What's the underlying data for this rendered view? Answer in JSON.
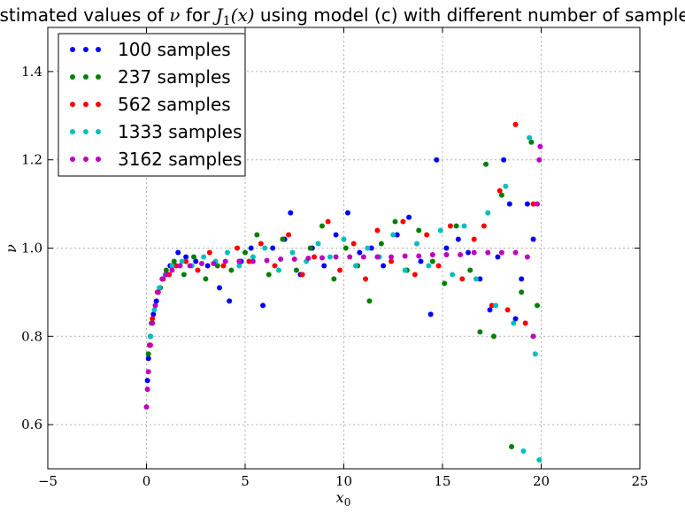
{
  "chart_data": {
    "type": "scatter",
    "title_parts": [
      {
        "text": "Estimated values of ",
        "math": false
      },
      {
        "text": "ν",
        "math": true
      },
      {
        "text": " for ",
        "math": false
      },
      {
        "text": "J",
        "math": true,
        "sub": "1",
        "after": "(x)"
      },
      {
        "text": " using model (c) with different number of samples",
        "math": false
      }
    ],
    "xlabel": "x",
    "xlabel_sub": "0",
    "ylabel": "ν",
    "xlim": [
      -5,
      25
    ],
    "ylim": [
      0.5,
      1.5
    ],
    "xticks": [
      -5,
      0,
      5,
      10,
      15,
      20,
      25
    ],
    "yticks": [
      0.6,
      0.8,
      1.0,
      1.2,
      1.4
    ],
    "ytick_labels": [
      "0.6",
      "0.8",
      "1.0",
      "1.2",
      "1.4"
    ],
    "xtick_labels": [
      "−5",
      "0",
      "5",
      "10",
      "15",
      "20",
      "25"
    ],
    "grid": true,
    "legend_position": "upper-left",
    "series": [
      {
        "name": "100 samples",
        "color": "#0000ff",
        "x": [
          0.05,
          0.1,
          0.2,
          0.35,
          0.5,
          0.8,
          1.2,
          1.6,
          2.0,
          2.5,
          3.1,
          3.7,
          4.2,
          4.8,
          5.3,
          5.9,
          6.4,
          7.0,
          7.3,
          7.8,
          8.4,
          9.0,
          9.6,
          10.2,
          10.8,
          11.4,
          12.0,
          12.7,
          13.3,
          13.9,
          14.4,
          14.7,
          15.2,
          15.8,
          16.3,
          16.9,
          17.4,
          17.8,
          18.1,
          18.4,
          18.7,
          19.0,
          19.3,
          19.6
        ],
        "y": [
          0.7,
          0.75,
          0.8,
          0.85,
          0.88,
          0.93,
          0.96,
          0.99,
          0.98,
          0.97,
          0.96,
          0.91,
          0.88,
          0.97,
          1.0,
          0.87,
          1.0,
          1.02,
          1.08,
          0.94,
          1.0,
          0.96,
          1.03,
          1.08,
          0.99,
          1.0,
          0.96,
          1.03,
          1.07,
          0.97,
          0.85,
          1.2,
          1.0,
          1.02,
          0.99,
          0.93,
          0.86,
          0.98,
          1.2,
          1.1,
          0.84,
          0.93,
          1.1,
          1.02
        ]
      },
      {
        "name": "237 samples",
        "color": "#008000",
        "x": [
          0.1,
          0.25,
          0.45,
          0.7,
          1.0,
          1.4,
          1.9,
          2.4,
          3.0,
          3.6,
          4.3,
          5.0,
          5.6,
          6.2,
          6.9,
          7.6,
          8.3,
          8.9,
          9.5,
          10.1,
          10.7,
          11.3,
          11.9,
          12.6,
          13.2,
          13.8,
          14.5,
          15.1,
          15.7,
          16.4,
          16.9,
          17.2,
          17.6,
          18.0,
          18.5,
          19.0,
          19.5,
          19.8
        ],
        "y": [
          0.76,
          0.83,
          0.87,
          0.91,
          0.95,
          0.97,
          0.94,
          0.98,
          0.93,
          0.96,
          0.95,
          0.99,
          1.03,
          0.94,
          1.02,
          0.95,
          1.0,
          1.05,
          0.93,
          1.0,
          0.96,
          0.88,
          1.01,
          1.06,
          0.95,
          1.04,
          0.97,
          0.92,
          1.05,
          0.95,
          0.81,
          1.19,
          0.8,
          1.12,
          0.55,
          0.9,
          1.24,
          0.87
        ]
      },
      {
        "name": "562 samples",
        "color": "#ff0000",
        "x": [
          0.15,
          0.3,
          0.55,
          0.85,
          1.15,
          1.5,
          2.0,
          2.6,
          3.2,
          3.9,
          4.6,
          5.2,
          5.8,
          6.5,
          7.2,
          7.9,
          8.5,
          9.2,
          9.8,
          10.5,
          11.1,
          11.7,
          12.4,
          13.0,
          13.6,
          14.2,
          14.8,
          15.4,
          16.0,
          16.6,
          17.1,
          17.5,
          17.9,
          18.3,
          18.7,
          19.2,
          19.6
        ],
        "y": [
          0.78,
          0.84,
          0.9,
          0.93,
          0.94,
          0.96,
          0.97,
          0.95,
          0.99,
          0.96,
          1.0,
          0.97,
          1.01,
          0.96,
          1.03,
          0.94,
          0.98,
          1.06,
          0.95,
          1.01,
          0.93,
          1.04,
          0.97,
          1.06,
          0.94,
          1.03,
          0.96,
          1.05,
          0.93,
          1.02,
          1.05,
          0.87,
          1.13,
          0.86,
          1.28,
          0.83,
          1.1
        ]
      },
      {
        "name": "1333 samples",
        "color": "#00bfbf",
        "x": [
          0.2,
          0.4,
          0.65,
          0.95,
          1.3,
          1.8,
          2.3,
          2.9,
          3.5,
          4.1,
          4.7,
          5.4,
          6.0,
          6.7,
          7.4,
          8.1,
          8.7,
          9.3,
          10.0,
          10.6,
          11.2,
          11.8,
          12.5,
          13.1,
          13.7,
          14.3,
          14.9,
          15.5,
          16.1,
          16.7,
          17.3,
          17.7,
          18.2,
          18.6,
          19.1,
          19.4,
          19.7,
          19.9
        ],
        "y": [
          0.8,
          0.86,
          0.91,
          0.94,
          0.96,
          0.97,
          0.96,
          0.98,
          0.97,
          0.99,
          0.96,
          0.98,
          1.0,
          0.95,
          0.99,
          0.97,
          1.01,
          0.98,
          1.02,
          0.96,
          1.0,
          0.98,
          1.03,
          0.95,
          1.01,
          0.96,
          1.04,
          0.94,
          1.05,
          0.93,
          1.08,
          0.87,
          1.14,
          0.83,
          0.54,
          1.25,
          0.76,
          0.52
        ]
      },
      {
        "name": "3162 samples",
        "color": "#bf00bf",
        "x": [
          0.0,
          0.05,
          0.1,
          0.2,
          0.3,
          0.45,
          0.6,
          0.8,
          1.0,
          1.3,
          1.7,
          2.2,
          2.8,
          3.4,
          4.0,
          4.7,
          5.4,
          6.1,
          6.8,
          7.5,
          8.2,
          8.9,
          9.6,
          10.3,
          11.0,
          11.7,
          12.4,
          13.1,
          13.8,
          14.5,
          15.2,
          15.9,
          16.6,
          17.3,
          18.0,
          18.7,
          19.3,
          19.6,
          19.8,
          19.9,
          19.95
        ],
        "y": [
          0.64,
          0.68,
          0.72,
          0.78,
          0.83,
          0.87,
          0.9,
          0.93,
          0.94,
          0.95,
          0.96,
          0.96,
          0.965,
          0.965,
          0.97,
          0.97,
          0.97,
          0.972,
          0.975,
          0.975,
          0.977,
          0.978,
          0.98,
          0.98,
          0.98,
          0.98,
          0.98,
          0.982,
          0.982,
          0.985,
          0.985,
          0.985,
          0.99,
          0.99,
          0.99,
          0.99,
          0.98,
          0.8,
          1.1,
          1.2,
          1.23
        ]
      }
    ]
  }
}
